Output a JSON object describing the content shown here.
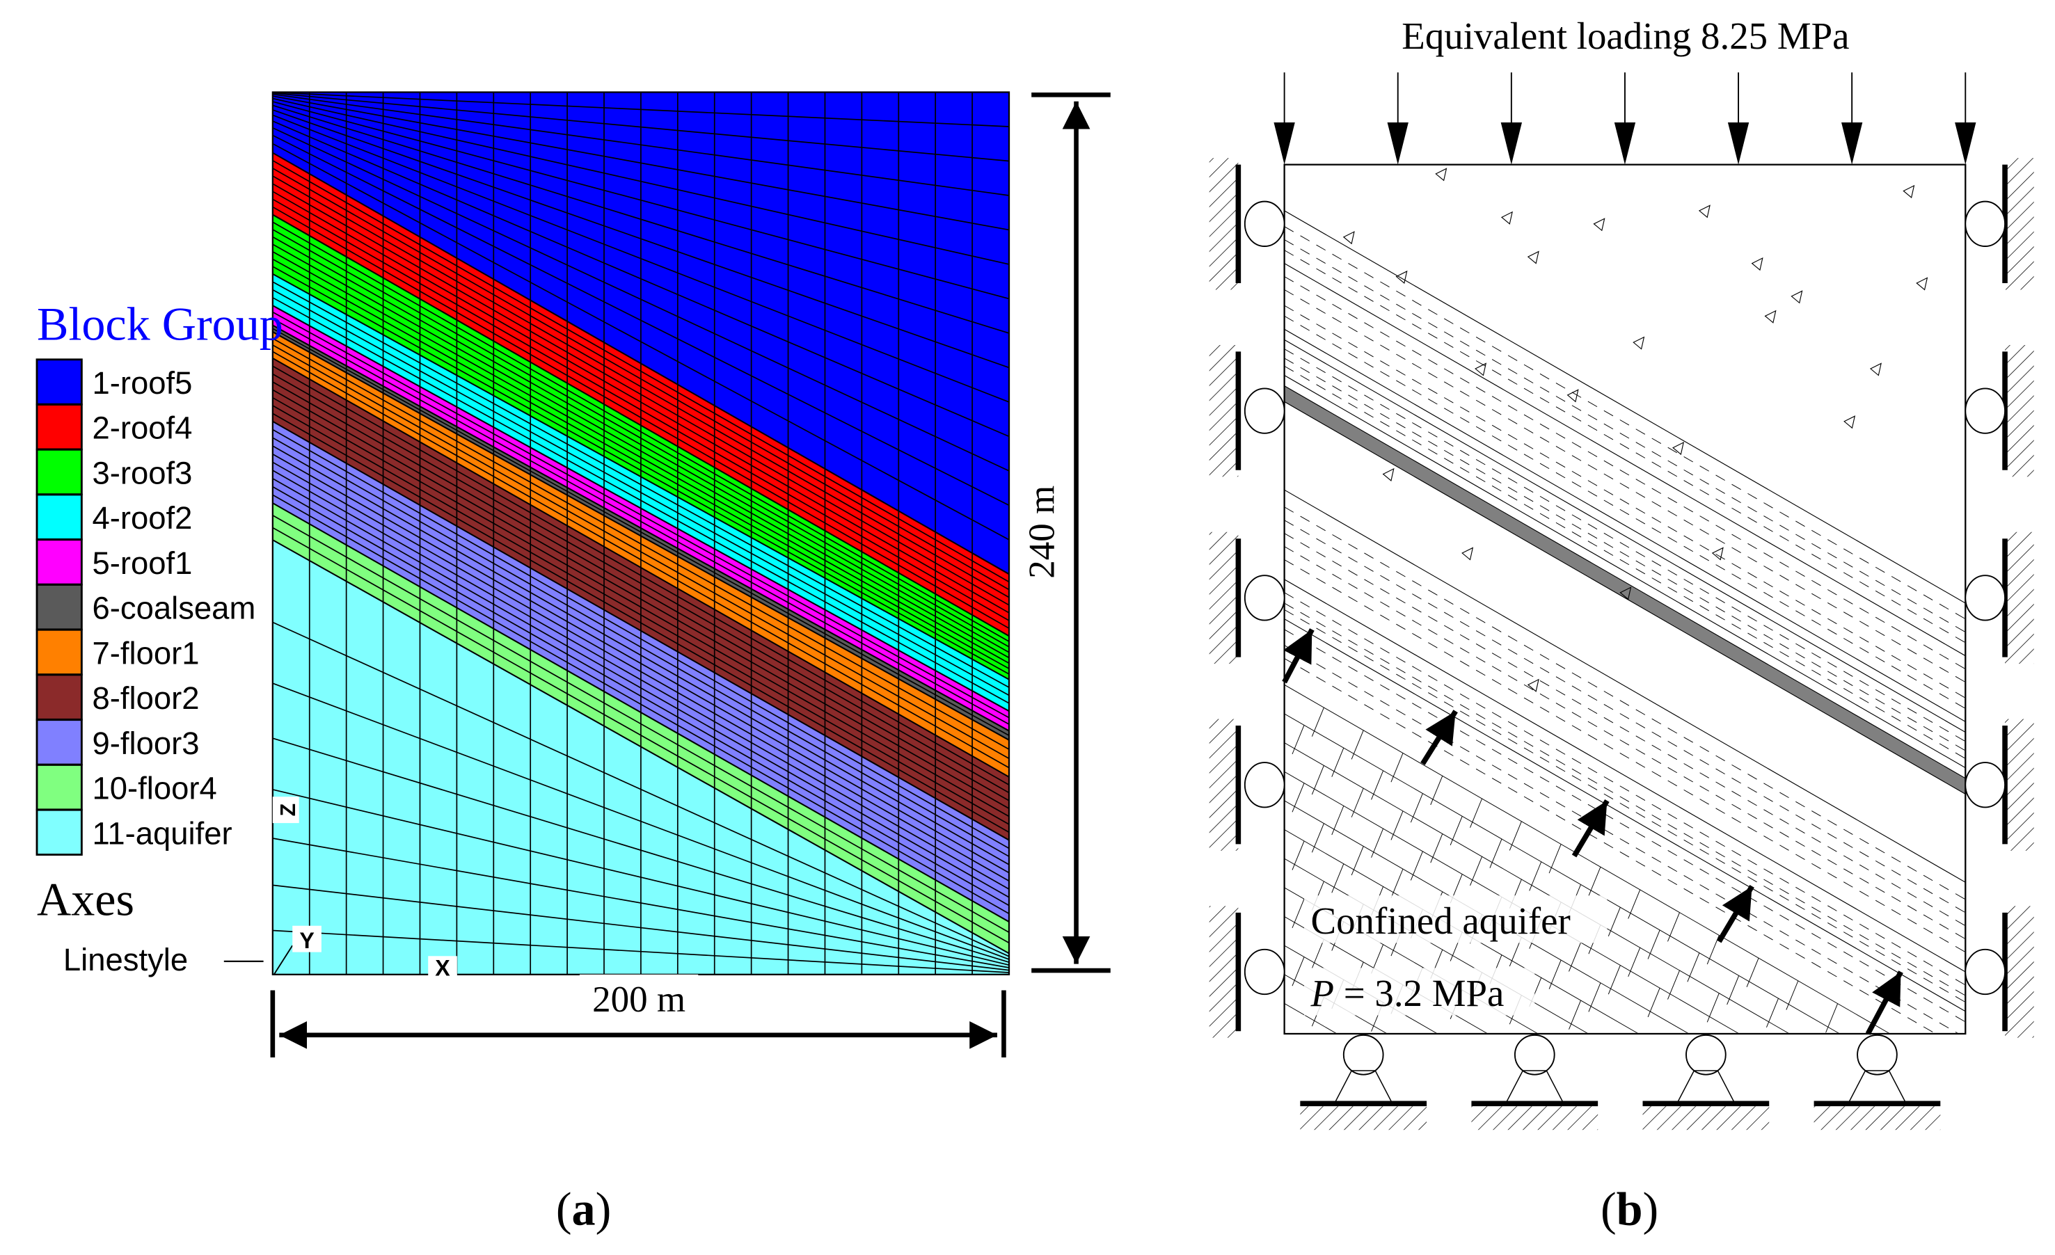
{
  "panel_a": {
    "legend_title": "Block Group",
    "legend_items": [
      {
        "label": "1-roof5",
        "color": "#0000ff"
      },
      {
        "label": "2-roof4",
        "color": "#ff0000"
      },
      {
        "label": "3-roof3",
        "color": "#00ff00"
      },
      {
        "label": "4-roof2",
        "color": "#00ffff"
      },
      {
        "label": "5-roof1",
        "color": "#ff00ff"
      },
      {
        "label": "6-coalseam",
        "color": "#5a5a5a"
      },
      {
        "label": "7-floor1",
        "color": "#ff8000"
      },
      {
        "label": "8-floor2",
        "color": "#8b2a2a"
      },
      {
        "label": "9-floor3",
        "color": "#8080ff"
      },
      {
        "label": "10-floor4",
        "color": "#80ff80"
      },
      {
        "label": "11-aquifer",
        "color": "#80ffff"
      }
    ],
    "axes_title": "Axes",
    "linestyle_label": "Linestyle",
    "axis_z": "Z",
    "axis_y": "Y",
    "axis_x": "X",
    "width_label": "200 m",
    "height_label": "240 m",
    "caption": "a"
  },
  "panel_b": {
    "top_load_label": "Equivalent loading 8.25 MPa",
    "aquifer_label": "Confined aquifer",
    "pressure_var": "P",
    "pressure_value": " = 3.2 MPa",
    "caption": "b",
    "coal_color": "#808080"
  }
}
